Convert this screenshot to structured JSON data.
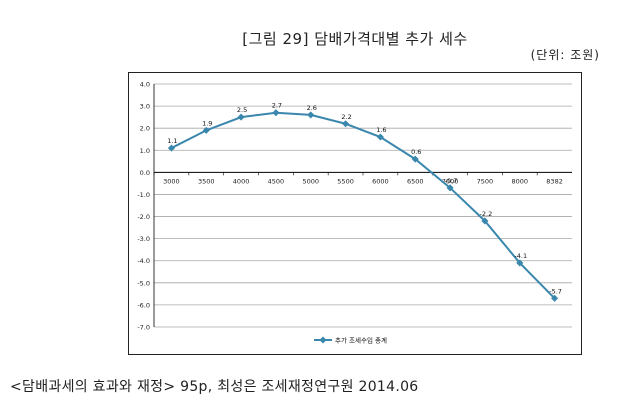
{
  "title": "[그림 29] 담배가격대별 추가 세수",
  "unit": "(단위: 조원)",
  "caption": "<담배과세의 효과와 재정> 95p, 최성은 조세재정연구원 2014.06",
  "colors": {
    "series": "#3a87ad",
    "grid": "#a8a8a8",
    "axis": "#000000"
  },
  "chart_data": {
    "type": "line",
    "title": "[그림 29] 담배가격대별 추가 세수",
    "xlabel": "",
    "ylabel": "",
    "categories": [
      "3000",
      "3500",
      "4000",
      "4500",
      "5000",
      "5500",
      "6000",
      "6500",
      "7000",
      "7500",
      "8000",
      "8382"
    ],
    "series": [
      {
        "name": "추가 조세수입 총계",
        "values": [
          1.1,
          1.9,
          2.5,
          2.7,
          2.6,
          2.2,
          1.6,
          0.6,
          -0.7,
          -2.2,
          -4.1,
          -5.7
        ],
        "labels": [
          "1.1",
          "1.9",
          "2.5",
          "2.7",
          "2.6",
          "2.2",
          "1.6",
          "0.6",
          "-0.7",
          "-2.2",
          "-4.1",
          "-5.7"
        ]
      }
    ],
    "yticks": [
      "4.0",
      "3.0",
      "2.0",
      "1.0",
      "0.0",
      "-1.0",
      "-2.0",
      "-3.0",
      "-4.0",
      "-5.0",
      "-6.0",
      "-7.0"
    ],
    "ylim": [
      -7,
      4
    ],
    "grid": true,
    "legend_position": "bottom"
  }
}
